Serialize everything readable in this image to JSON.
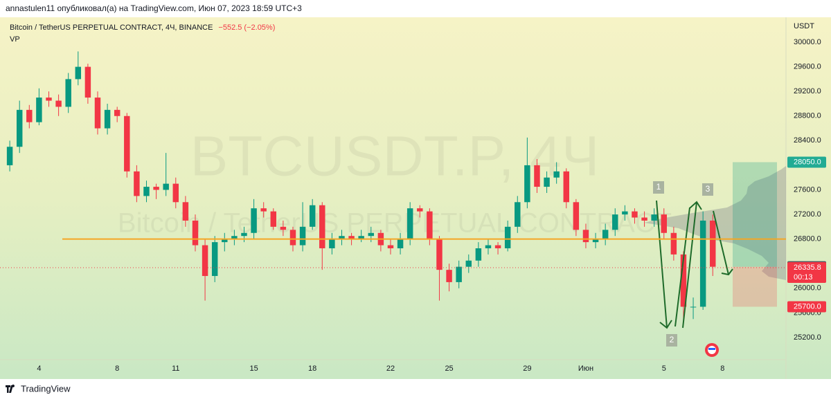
{
  "header": {
    "text": "annastulen11 опубликовал(а) на TradingView.com, Июн 07, 2023 18:59 UTC+3"
  },
  "footer": {
    "brand": "TradingView"
  },
  "chart_data": {
    "type": "candlestick",
    "title": "Bitcoin / TetherUS PERPETUAL CONTRACT, 4Ч, BINANCE",
    "change": "−552.5 (−2.05%)",
    "indicator": "VP",
    "watermark": "BTCUSDT.P, 4Ч",
    "watermark_subtitle": "Bitcoin / TetherUS PERPETUAL CONTRACT",
    "currency": "USDT",
    "up_color": "#089981",
    "down_color": "#f23645",
    "x": [
      2.5,
      3,
      3.5,
      4,
      4.5,
      5,
      5.5,
      6,
      6.5,
      7,
      7.5,
      8,
      8.5,
      9,
      9.5,
      10,
      10.5,
      11,
      11.5,
      12,
      12.5,
      13,
      13.5,
      14,
      14.5,
      15,
      15.5,
      16,
      16.5,
      17,
      17.5,
      18,
      18.5,
      19,
      19.5,
      20,
      20.5,
      21,
      21.5,
      22,
      22.5,
      23,
      23.5,
      24,
      24.5,
      25,
      25.5,
      26,
      26.5,
      27,
      27.5,
      28,
      28.5,
      29,
      29.5,
      30,
      30.5,
      31,
      31.5,
      32,
      32.5,
      33,
      33.5,
      34,
      34.5,
      35,
      35.5,
      36,
      36.5,
      37,
      37.5,
      38,
      38.5
    ],
    "open": [
      28000,
      28300,
      28900,
      28700,
      29100,
      29050,
      28950,
      29400,
      29600,
      29100,
      28600,
      28900,
      28800,
      27900,
      27500,
      27650,
      27600,
      27700,
      27400,
      27100,
      26700,
      26200,
      26750,
      26800,
      26850,
      26900,
      27300,
      27250,
      27000,
      26950,
      26700,
      27000,
      27350,
      26650,
      26800,
      26850,
      26800,
      26850,
      26900,
      26700,
      26650,
      26800,
      27300,
      27250,
      26800,
      26300,
      26100,
      26350,
      26450,
      26650,
      26700,
      26650,
      27000,
      27400,
      28000,
      27650,
      27800,
      27900,
      27400,
      26950,
      26750,
      26800,
      26950,
      27200,
      27250,
      27150,
      27100,
      27200,
      26900,
      26550,
      25700,
      25700,
      27100
    ],
    "high": [
      28400,
      29050,
      28980,
      29250,
      29200,
      29150,
      29500,
      29850,
      29650,
      29200,
      29000,
      28950,
      28850,
      28000,
      27750,
      27700,
      28200,
      27800,
      27500,
      27200,
      26800,
      26850,
      26900,
      26950,
      27000,
      27450,
      27400,
      27300,
      27100,
      27000,
      27400,
      27450,
      27400,
      26900,
      26950,
      26900,
      26950,
      27000,
      26950,
      26800,
      26900,
      27400,
      27350,
      27300,
      26850,
      26400,
      26450,
      26550,
      26750,
      26800,
      26750,
      27100,
      27500,
      28450,
      28100,
      27900,
      28050,
      27950,
      27450,
      27050,
      26900,
      27050,
      27300,
      27350,
      27300,
      27250,
      27300,
      27300,
      27000,
      26600,
      25850,
      27250,
      27200
    ],
    "low": [
      27900,
      28200,
      28600,
      28650,
      28950,
      28800,
      28850,
      29300,
      29000,
      28500,
      28500,
      28700,
      27800,
      27400,
      27400,
      27450,
      27500,
      27300,
      27000,
      26600,
      25800,
      26100,
      26600,
      26700,
      26750,
      26800,
      27150,
      26950,
      26850,
      26600,
      26600,
      26950,
      26300,
      26550,
      26700,
      26700,
      26750,
      26750,
      26600,
      26550,
      26550,
      26700,
      27150,
      26700,
      25800,
      25950,
      26000,
      26250,
      26350,
      26550,
      26550,
      26600,
      26900,
      27300,
      27550,
      27550,
      27700,
      27300,
      26850,
      26650,
      26650,
      26700,
      26850,
      27100,
      27050,
      27000,
      27000,
      26800,
      26450,
      25400,
      25500,
      25650,
      26200
    ],
    "close": [
      28300,
      28900,
      28700,
      29100,
      29050,
      28950,
      29400,
      29600,
      29100,
      28600,
      28900,
      28800,
      27900,
      27500,
      27650,
      27600,
      27700,
      27400,
      27100,
      26700,
      26200,
      26750,
      26800,
      26850,
      26900,
      27300,
      27250,
      27000,
      26950,
      26700,
      27000,
      27350,
      26650,
      26800,
      26850,
      26800,
      26850,
      26900,
      26700,
      26650,
      26800,
      27300,
      27250,
      26800,
      26300,
      26100,
      26350,
      26450,
      26650,
      26700,
      26650,
      27000,
      27400,
      28000,
      27650,
      27800,
      27900,
      27400,
      26950,
      26750,
      26800,
      26950,
      27200,
      27250,
      27150,
      27100,
      27200,
      26900,
      26550,
      25700,
      25700,
      27100,
      26350
    ],
    "xlim": [
      2,
      42.25
    ],
    "xticks": [
      4,
      8,
      11,
      15,
      18,
      22,
      25,
      29,
      {
        "value": 32,
        "label": "Июн"
      },
      {
        "value": 36,
        "label": "5"
      },
      {
        "value": 39,
        "label": "8"
      }
    ],
    "ylim": [
      24840,
      30405
    ],
    "yticks": [
      {
        "value": 30000,
        "label": "30000.0"
      },
      {
        "value": 29600,
        "label": "29600.0"
      },
      {
        "value": 29200,
        "label": "29200.0"
      },
      {
        "value": 28800,
        "label": "28800.0"
      },
      {
        "value": 28400,
        "label": "28400.0"
      },
      {
        "value": 27600,
        "label": "27600.0"
      },
      {
        "value": 27200,
        "label": "27200.0"
      },
      {
        "value": 26800,
        "label": "26800.0"
      },
      {
        "value": 26000,
        "label": "26000.0"
      },
      {
        "value": 25600,
        "label": "25600.0"
      },
      {
        "value": 25200,
        "label": "25200.0"
      }
    ],
    "horizontal_line": {
      "value": 26800,
      "color": "#f5a623"
    },
    "price_levels": [
      {
        "value": 28050,
        "label": "28050.0",
        "color": "#22ab94"
      },
      {
        "value": 26350,
        "label": "26350.0",
        "color": "#50535e"
      },
      {
        "value": 26335.8,
        "label": "26335.8",
        "color": "#f23645",
        "countdown": "00:13"
      },
      {
        "value": 25700,
        "label": "25700.0",
        "color": "#f23645"
      }
    ],
    "annotations": [
      "1",
      "2",
      "3"
    ]
  }
}
